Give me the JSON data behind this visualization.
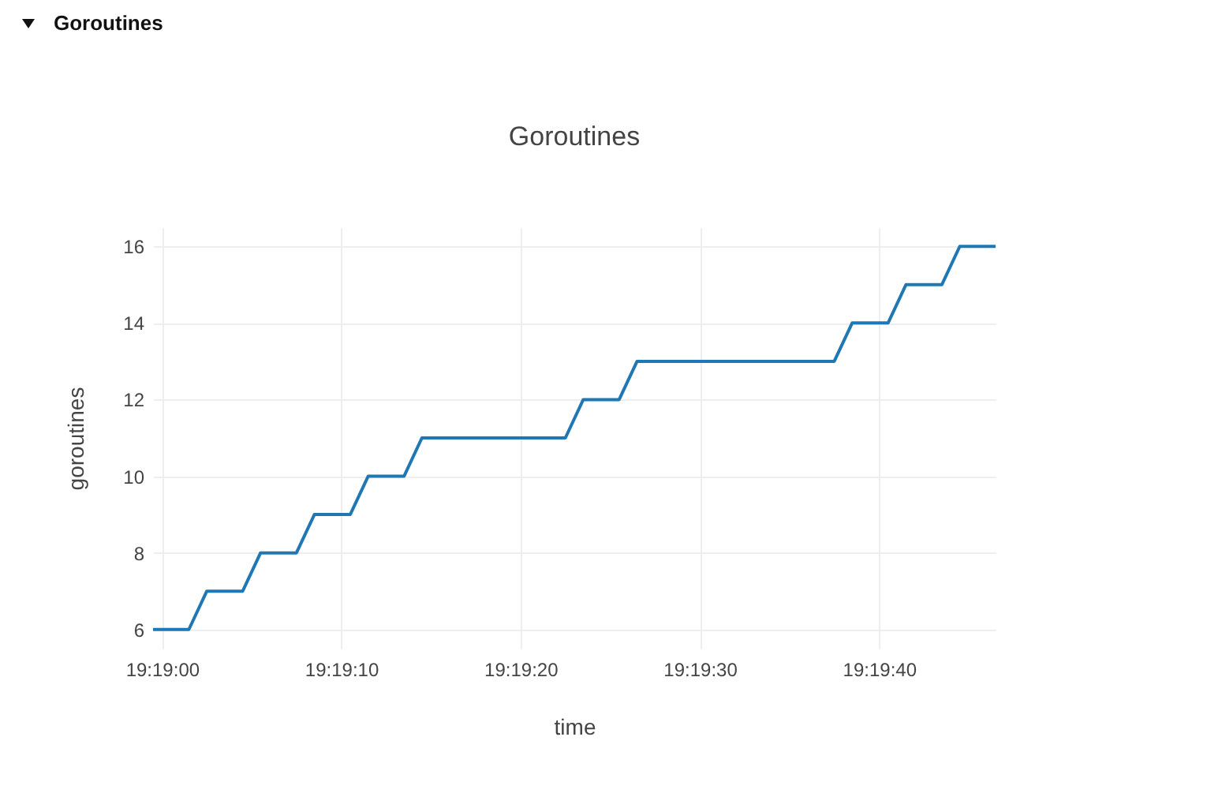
{
  "chart_data": {
    "type": "line",
    "title": "Goroutines",
    "xlabel": "time",
    "ylabel": "goroutines",
    "annotations": [
      "Goroutines"
    ],
    "x": [
      19.316528,
      19.317083,
      19.317361,
      19.317917,
      19.318194,
      19.31875,
      19.319028,
      19.319583,
      19.319861,
      19.320417,
      19.320694,
      19.322917,
      19.323194,
      19.32375,
      19.324028,
      19.327083,
      19.327361,
      19.327917,
      19.328194,
      19.32875,
      19.329028,
      19.329583
    ],
    "series": [
      {
        "color": "#1f77b4",
        "values": [
          6,
          6,
          7,
          7,
          8,
          8,
          9,
          9,
          10,
          10,
          11,
          11,
          12,
          12,
          13,
          13,
          14,
          14,
          15,
          15,
          16,
          16
        ]
      }
    ],
    "xlim": [
      19.316528,
      19.329583
    ],
    "xticks": [
      {
        "value": 19.316667,
        "label": "19:19:00"
      },
      {
        "value": 19.319444,
        "label": "19:19:10"
      },
      {
        "value": 19.322222,
        "label": "19:19:20"
      },
      {
        "value": 19.325,
        "label": "19:19:30"
      },
      {
        "value": 19.327778,
        "label": "19:19:40"
      }
    ],
    "ylim": [
      5.5,
      16.5
    ],
    "yticks": [
      6,
      8,
      10,
      12,
      14,
      16
    ],
    "grid": true,
    "marker": "none",
    "line_style": "solid"
  }
}
